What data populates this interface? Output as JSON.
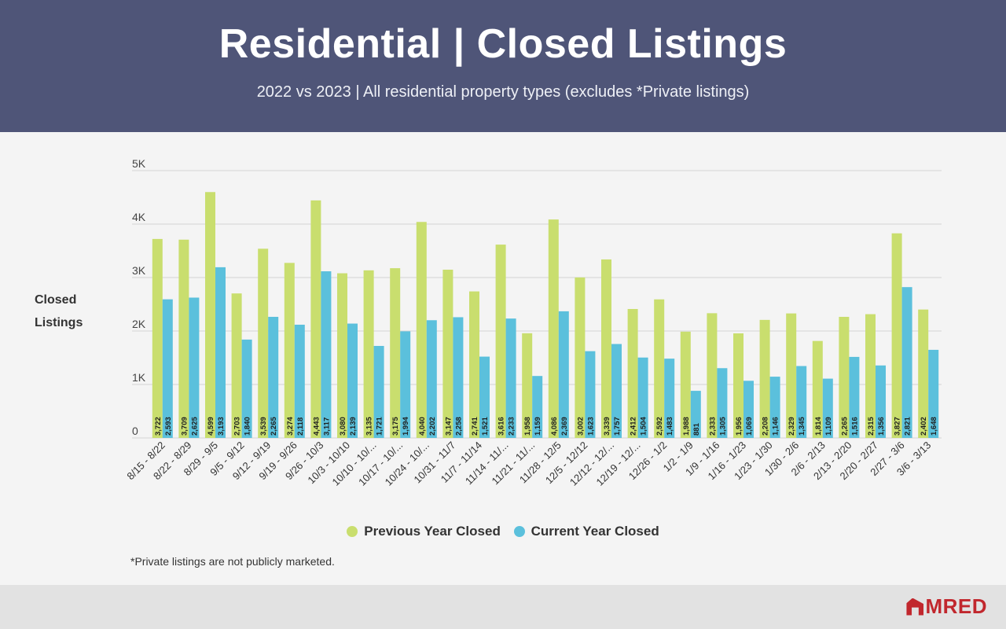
{
  "header": {
    "title": "Residential | Closed Listings",
    "subtitle": "2022 vs 2023 | All residential property types (excludes *Private listings)"
  },
  "footnote": "*Private listings are not publicly marketed.",
  "logo": {
    "text": "MRED",
    "color": "#c1272d"
  },
  "colors": {
    "previous": "#c9de6e",
    "current": "#5bc0dc",
    "header_bg": "#4f5578"
  },
  "chart_data": {
    "type": "bar",
    "ylabel": "Closed Listings",
    "ylim": [
      0,
      5000
    ],
    "yticks": [
      "0",
      "1K",
      "2K",
      "3K",
      "4K",
      "5K"
    ],
    "grid": true,
    "legend_position": "bottom",
    "categories": [
      "8/15 - 8/22",
      "8/22 - 8/29",
      "8/29 - 9/5",
      "9/5 - 9/12",
      "9/12 - 9/19",
      "9/19 - 9/26",
      "9/26 - 10/3",
      "10/3 - 10/10",
      "10/10 - 10/...",
      "10/17 - 10/...",
      "10/24 - 10/...",
      "10/31 - 11/7",
      "11/7 - 11/14",
      "11/14 - 11/...",
      "11/21 - 11/...",
      "11/28 - 12/5",
      "12/5 - 12/12",
      "12/12 - 12/...",
      "12/19 - 12/...",
      "12/26 - 1/2",
      "1/2 - 1/9",
      "1/9 - 1/16",
      "1/16 - 1/23",
      "1/23 - 1/30",
      "1/30 - 2/6",
      "2/6 - 2/13",
      "2/13 - 2/20",
      "2/20 - 2/27",
      "2/27 - 3/6",
      "3/6 - 3/13"
    ],
    "series": [
      {
        "name": "Previous Year Closed",
        "values": [
          3722,
          3709,
          4599,
          2703,
          3539,
          3274,
          4443,
          3080,
          3135,
          3175,
          4040,
          3147,
          2741,
          3616,
          1958,
          4086,
          3002,
          3339,
          2412,
          2592,
          1988,
          2333,
          1956,
          2208,
          2329,
          1814,
          2265,
          2315,
          3827,
          2402
        ],
        "labels": [
          "3,722",
          "3,709",
          "4,599",
          "2,703",
          "3,539",
          "3,274",
          "4,443",
          "3,080",
          "3,135",
          "3,175",
          "4,040",
          "3,147",
          "2,741",
          "3,616",
          "1,958",
          "4,086",
          "3,002",
          "3,339",
          "2,412",
          "2,592",
          "1,988",
          "2,333",
          "1,956",
          "2,208",
          "2,329",
          "1,814",
          "2,265",
          "2,315",
          "3,827",
          "2,402"
        ]
      },
      {
        "name": "Current Year Closed",
        "values": [
          2593,
          2625,
          3193,
          1840,
          2265,
          2118,
          3117,
          2139,
          1721,
          1994,
          2202,
          2258,
          1521,
          2233,
          1159,
          2369,
          1623,
          1757,
          1504,
          1483,
          881,
          1305,
          1069,
          1146,
          1345,
          1109,
          1516,
          1356,
          2821,
          1648
        ],
        "labels": [
          "2,593",
          "2,625",
          "3,193",
          "1,840",
          "2,265",
          "2,118",
          "3,117",
          "2,139",
          "1,721",
          "1,994",
          "2,202",
          "2,258",
          "1,521",
          "2,233",
          "1,159",
          "2,369",
          "1,623",
          "1,757",
          "1,504",
          "1,483",
          "881",
          "1,305",
          "1,069",
          "1,146",
          "1,345",
          "1,109",
          "1,516",
          "1,356",
          "2,821",
          "1,648"
        ]
      }
    ]
  }
}
